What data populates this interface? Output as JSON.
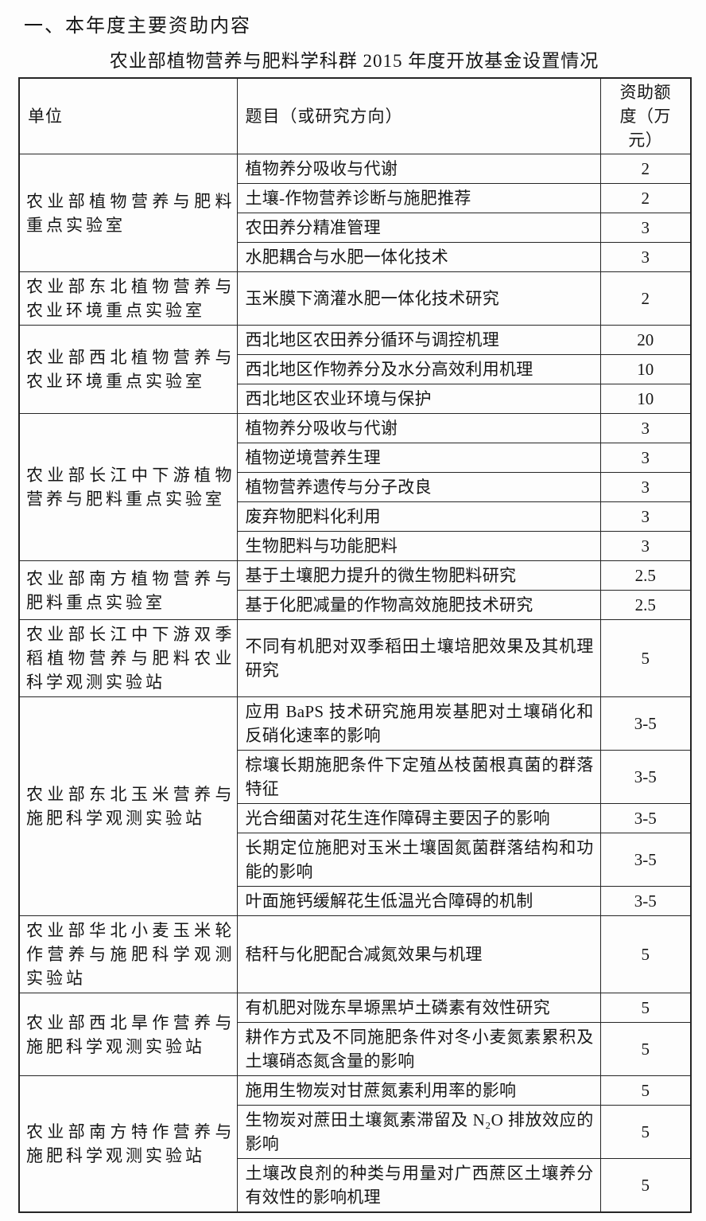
{
  "page": {
    "section_title": "一、本年度主要资助内容",
    "table_title": "农业部植物营养与肥料学科群 2015 年度开放基金设置情况"
  },
  "table": {
    "headers": [
      "单位",
      "题目（或研究方向）",
      "资助额度（万元）"
    ],
    "groups": [
      {
        "unit": "农业部植物营养与肥料重点实验室",
        "rows": [
          {
            "topic": "植物养分吸收与代谢",
            "amount": "2"
          },
          {
            "topic": "土壤-作物营养诊断与施肥推荐",
            "amount": "2"
          },
          {
            "topic": "农田养分精准管理",
            "amount": "3"
          },
          {
            "topic": "水肥耦合与水肥一体化技术",
            "amount": "3"
          }
        ]
      },
      {
        "unit": "农业部东北植物营养与农业环境重点实验室",
        "rows": [
          {
            "topic": "玉米膜下滴灌水肥一体化技术研究",
            "amount": "2"
          }
        ]
      },
      {
        "unit": "农业部西北植物营养与农业环境重点实验室",
        "rows": [
          {
            "topic": "西北地区农田养分循环与调控机理",
            "amount": "20"
          },
          {
            "topic": "西北地区作物养分及水分高效利用机理",
            "amount": "10"
          },
          {
            "topic": "西北地区农业环境与保护",
            "amount": "10"
          }
        ]
      },
      {
        "unit": "农业部长江中下游植物营养与肥料重点实验室",
        "rows": [
          {
            "topic": "植物养分吸收与代谢",
            "amount": "3"
          },
          {
            "topic": "植物逆境营养生理",
            "amount": "3"
          },
          {
            "topic": "植物营养遗传与分子改良",
            "amount": "3"
          },
          {
            "topic": "废弃物肥料化利用",
            "amount": "3"
          },
          {
            "topic": "生物肥料与功能肥料",
            "amount": "3"
          }
        ]
      },
      {
        "unit": "农业部南方植物营养与肥料重点实验室",
        "rows": [
          {
            "topic": "基于土壤肥力提升的微生物肥料研究",
            "amount": "2.5"
          },
          {
            "topic": "基于化肥减量的作物高效施肥技术研究",
            "amount": "2.5"
          }
        ]
      },
      {
        "unit": "农业部长江中下游双季稻植物营养与肥料农业科学观测实验站",
        "rows": [
          {
            "topic": "不同有机肥对双季稻田土壤培肥效果及其机理研究",
            "amount": "5"
          }
        ]
      },
      {
        "unit": "农业部东北玉米营养与施肥科学观测实验站",
        "rows": [
          {
            "topic": "应用 BaPS 技术研究施用炭基肥对土壤硝化和反硝化速率的影响",
            "amount": "3-5"
          },
          {
            "topic": "棕壤长期施肥条件下定殖丛枝菌根真菌的群落特征",
            "amount": "3-5"
          },
          {
            "topic": "光合细菌对花生连作障碍主要因子的影响",
            "amount": "3-5"
          },
          {
            "topic": "长期定位施肥对玉米土壤固氮菌群落结构和功能的影响",
            "amount": "3-5"
          },
          {
            "topic": "叶面施钙缓解花生低温光合障碍的机制",
            "amount": "3-5"
          }
        ]
      },
      {
        "unit": "农业部华北小麦玉米轮作营养与施肥科学观测实验站",
        "rows": [
          {
            "topic": "秸秆与化肥配合减氮效果与机理",
            "amount": "5"
          }
        ]
      },
      {
        "unit": "农业部西北旱作营养与施肥科学观测实验站",
        "rows": [
          {
            "topic": "有机肥对陇东旱塬黑垆土磷素有效性研究",
            "amount": "5"
          },
          {
            "topic": "耕作方式及不同施肥条件对冬小麦氮素累积及土壤硝态氮含量的影响",
            "amount": "5"
          }
        ]
      },
      {
        "unit": "农业部南方特作营养与施肥科学观测实验站",
        "rows": [
          {
            "topic": "施用生物炭对甘蔗氮素利用率的影响",
            "amount": "5"
          },
          {
            "topic": "生物炭对蔗田土壤氮素滞留及 N₂O 排放效应的影响",
            "amount": "5"
          },
          {
            "topic": "土壤改良剂的种类与用量对广西蔗区土壤养分有效性的影响机理",
            "amount": "5"
          }
        ]
      }
    ]
  }
}
